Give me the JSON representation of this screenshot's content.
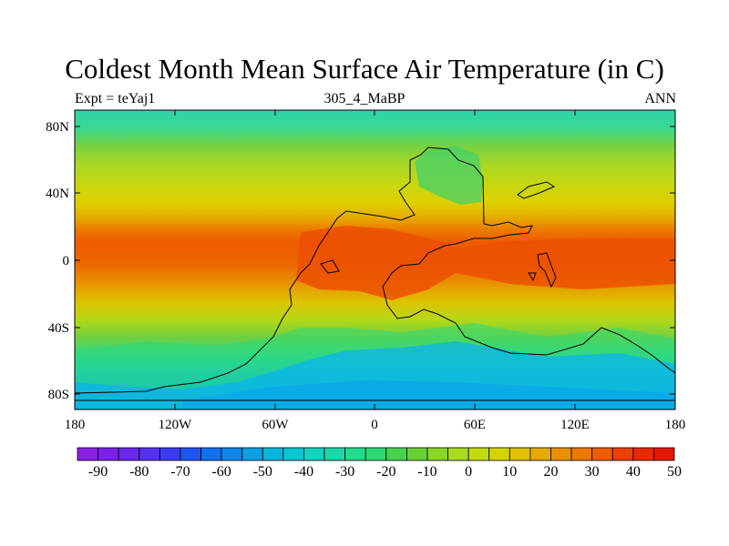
{
  "title": "Coldest Month Mean Surface Air Temperature (in C)",
  "subtitle_left": "Expt = teYaj1",
  "subtitle_center": "305_4_MaBP",
  "subtitle_right": "ANN",
  "lat_labels": [
    "80N",
    "40N",
    "0",
    "40S",
    "80S"
  ],
  "lon_labels": [
    "180",
    "120W",
    "60W",
    "0",
    "60E",
    "120E",
    "180"
  ],
  "colorbar": {
    "labels": [
      "-90",
      "-80",
      "-70",
      "-60",
      "-50",
      "-40",
      "-30",
      "-20",
      "-10",
      "0",
      "10",
      "20",
      "30",
      "40",
      "50"
    ],
    "colors": [
      "#8a1fe6",
      "#7a22e8",
      "#6a28ec",
      "#5530ee",
      "#3a3cf0",
      "#1f55f0",
      "#1070ee",
      "#0d88ea",
      "#0aa0e4",
      "#08b4dc",
      "#0cc6d2",
      "#14d2c0",
      "#1ad8a8",
      "#22dc8c",
      "#2ed870",
      "#46d450",
      "#68d034",
      "#8ad628",
      "#a8dc20",
      "#c2dc10",
      "#d6d400",
      "#e0c200",
      "#e6aa00",
      "#ea9000",
      "#ec7800",
      "#ee5c00",
      "#ec4000",
      "#e82a00",
      "#e21800"
    ]
  }
}
